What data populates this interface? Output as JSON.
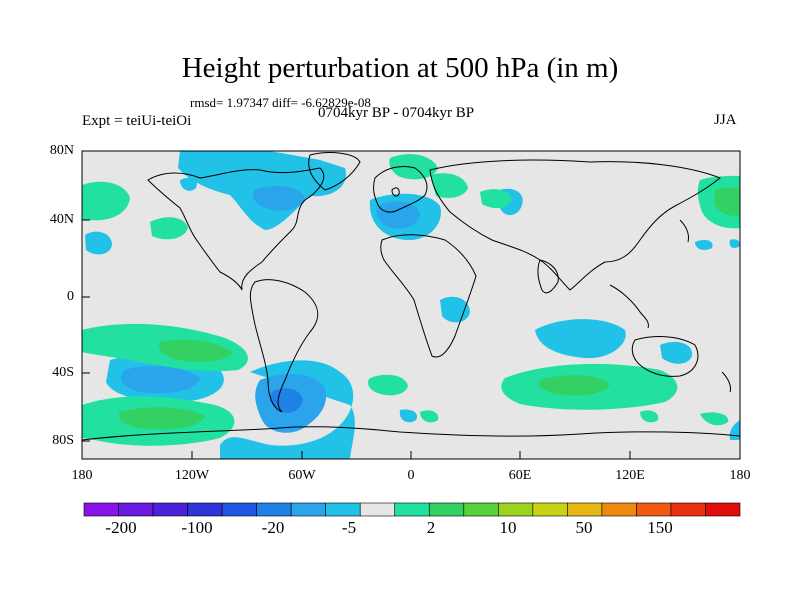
{
  "title": "Height perturbation at 500 hPa (in m)",
  "stats_text": "rmsd= 1.97347 diff= -6.62829e-08",
  "experiment": "Expt = teiUi-teiOi",
  "period": "0704kyr BP - 0704kyr BP",
  "season": "JJA",
  "lat_labels": [
    "80N",
    "40N",
    "0",
    "40S",
    "80S"
  ],
  "lon_labels": [
    "180",
    "120W",
    "60W",
    "0",
    "60E",
    "120E",
    "180"
  ],
  "colorbar": {
    "colors": [
      "#8a14e6",
      "#6a1be0",
      "#4a22d8",
      "#2f34d8",
      "#1f55e0",
      "#1f80e6",
      "#2aa4ea",
      "#22c2e8",
      "#e6e6e6",
      "#22e0a0",
      "#33d064",
      "#55d13a",
      "#9ad41e",
      "#c8d318",
      "#e6b814",
      "#ef8a10",
      "#ef5a10",
      "#e83012",
      "#e00d0d"
    ],
    "labels": [
      "-200",
      "-100",
      "-20",
      "-5",
      "2",
      "10",
      "50",
      "150"
    ]
  }
}
